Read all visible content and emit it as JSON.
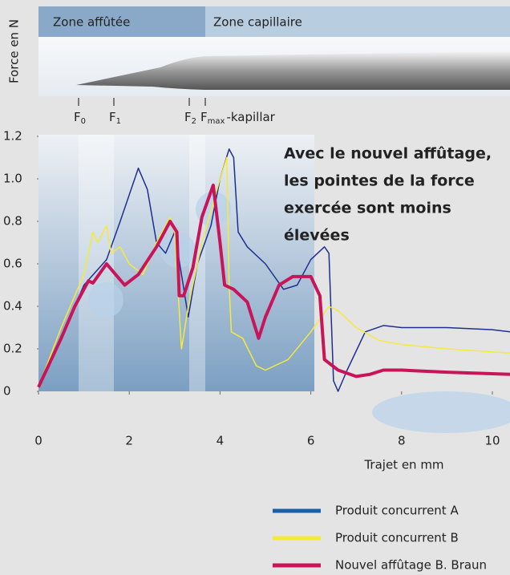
{
  "chart_data": {
    "type": "line",
    "zones": [
      "Zone affûtée",
      "Zone capillaire"
    ],
    "force_markers": [
      {
        "base": "F",
        "sub": "0"
      },
      {
        "base": "F",
        "sub": "1"
      },
      {
        "base": "F",
        "sub": "2"
      },
      {
        "base": "F",
        "sub": "max",
        "suffix": "-kapillar"
      }
    ],
    "y_label": "Force en N",
    "x_label": "Trajet en mm",
    "annotation": [
      "Avec le nouvel affûtage,",
      "les pointes de la force",
      "exercée sont moins",
      "élevées"
    ],
    "xlim": [
      0,
      10.4
    ],
    "xticks": [
      0,
      2,
      4,
      6,
      8,
      10
    ],
    "ylim": [
      0,
      1.2
    ],
    "yticks": [
      0,
      0.2,
      0.4,
      0.6,
      0.8,
      {
        "value": 1,
        "label": "1.0"
      },
      1.2
    ],
    "series": [
      {
        "name": "Produit concurrent A",
        "color": "#1f2f8f",
        "legend_color": "#1a5fa8",
        "width": 1.5,
        "x": [
          0,
          0.5,
          1.0,
          1.5,
          1.8,
          2.2,
          2.4,
          2.6,
          2.8,
          3.0,
          3.3,
          3.5,
          3.8,
          4.0,
          4.2,
          4.3,
          4.4,
          4.6,
          5.0,
          5.4,
          5.7,
          6.0,
          6.3,
          6.4,
          6.5,
          6.6,
          6.8,
          7.2,
          7.6,
          8,
          9,
          10,
          10.4
        ],
        "values": [
          0.02,
          0.25,
          0.5,
          0.62,
          0.8,
          1.05,
          0.95,
          0.7,
          0.65,
          0.75,
          0.35,
          0.6,
          0.78,
          1.0,
          1.14,
          1.1,
          0.75,
          0.68,
          0.6,
          0.48,
          0.5,
          0.62,
          0.68,
          0.65,
          0.05,
          0.0,
          0.1,
          0.28,
          0.31,
          0.3,
          0.3,
          0.29,
          0.28
        ]
      },
      {
        "name": "Produit concurrent B",
        "color": "#f5ea3a",
        "legend_color": "#f5ea3a",
        "width": 1.5,
        "x": [
          0,
          0.5,
          1.0,
          1.2,
          1.3,
          1.5,
          1.6,
          1.8,
          2.0,
          2.3,
          2.6,
          2.9,
          3.0,
          3.15,
          3.3,
          3.6,
          3.8,
          4.0,
          4.15,
          4.2,
          4.25,
          4.5,
          4.8,
          5.0,
          5.5,
          6.0,
          6.4,
          6.6,
          7.0,
          7.5,
          8,
          9,
          10.4
        ],
        "values": [
          0.02,
          0.3,
          0.55,
          0.75,
          0.7,
          0.78,
          0.65,
          0.68,
          0.6,
          0.55,
          0.7,
          0.82,
          0.75,
          0.2,
          0.4,
          0.7,
          0.85,
          1.0,
          1.1,
          0.5,
          0.28,
          0.25,
          0.12,
          0.1,
          0.15,
          0.28,
          0.4,
          0.38,
          0.3,
          0.24,
          0.22,
          0.2,
          0.18
        ]
      },
      {
        "name": "Nouvel affûtage B. Braun",
        "color": "#c8155a",
        "legend_color": "#c8155a",
        "width": 4,
        "x": [
          0,
          0.5,
          0.8,
          1.1,
          1.2,
          1.5,
          1.7,
          1.9,
          2.2,
          2.6,
          2.9,
          3.05,
          3.1,
          3.2,
          3.4,
          3.6,
          3.85,
          4.0,
          4.1,
          4.3,
          4.6,
          4.85,
          5.0,
          5.3,
          5.6,
          6.0,
          6.2,
          6.3,
          6.6,
          7.0,
          7.3,
          7.6,
          8,
          9,
          10.4
        ],
        "values": [
          0.02,
          0.25,
          0.4,
          0.52,
          0.51,
          0.6,
          0.55,
          0.5,
          0.55,
          0.68,
          0.8,
          0.75,
          0.45,
          0.45,
          0.58,
          0.82,
          0.97,
          0.7,
          0.5,
          0.48,
          0.42,
          0.25,
          0.35,
          0.5,
          0.54,
          0.54,
          0.45,
          0.15,
          0.1,
          0.07,
          0.08,
          0.1,
          0.1,
          0.09,
          0.08
        ]
      }
    ]
  }
}
